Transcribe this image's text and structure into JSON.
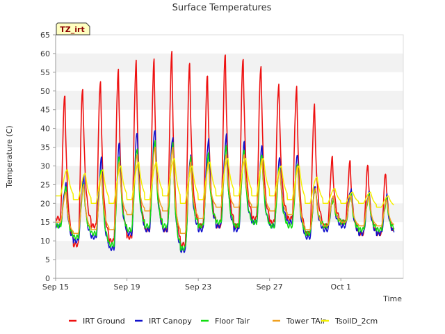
{
  "chart_data": {
    "type": "line",
    "title": "Surface Temperatures",
    "xlabel": "Time",
    "ylabel": "Temperature (C)",
    "badge": "TZ_irt",
    "ylim": [
      0,
      65
    ],
    "yticks": [
      0,
      5,
      10,
      15,
      20,
      25,
      30,
      35,
      40,
      45,
      50,
      55,
      60,
      65
    ],
    "xlim": [
      "2023-09-15",
      "2023-10-04T12:00"
    ],
    "xticks": [
      {
        "label": "Sep 15",
        "date": "2023-09-15"
      },
      {
        "label": "Sep 19",
        "date": "2023-09-19"
      },
      {
        "label": "Sep 23",
        "date": "2023-09-23"
      },
      {
        "label": "Sep 27",
        "date": "2023-09-27"
      },
      {
        "label": "Oct 1",
        "date": "2023-10-01"
      }
    ],
    "grid": "horizontal-bands",
    "legend_position": "bottom",
    "daily_dates": [
      "2023-09-15",
      "2023-09-16",
      "2023-09-17",
      "2023-09-18",
      "2023-09-19",
      "2023-09-20",
      "2023-09-21",
      "2023-09-22",
      "2023-09-23",
      "2023-09-24",
      "2023-09-25",
      "2023-09-26",
      "2023-09-27",
      "2023-09-28",
      "2023-09-29",
      "2023-09-30",
      "2023-10-01",
      "2023-10-02",
      "2023-10-03"
    ],
    "series": [
      {
        "name": "IRT Ground",
        "color": "#ee1111",
        "daily_max": [
          49,
          51,
          53,
          56,
          58,
          58,
          60,
          57,
          54,
          60,
          59,
          57,
          52,
          51,
          46,
          32,
          31,
          30,
          28
        ],
        "daily_min": [
          16,
          9,
          14,
          10,
          11,
          13,
          13,
          9,
          14,
          14,
          14,
          16,
          15,
          16,
          12,
          14,
          15,
          12,
          12
        ]
      },
      {
        "name": "IRT Canopy",
        "color": "#1111cc",
        "daily_max": [
          25,
          27,
          32,
          36,
          39,
          40,
          38,
          33,
          37,
          38,
          36,
          35,
          32,
          33,
          25,
          22,
          24,
          23,
          22
        ],
        "daily_min": [
          14,
          10,
          11,
          8,
          12,
          13,
          13,
          7.5,
          13,
          14,
          13,
          15,
          14,
          15,
          11,
          13,
          14,
          12,
          12
        ]
      },
      {
        "name": "Floor Tair",
        "color": "#11dd11",
        "daily_max": [
          24,
          25,
          29,
          33,
          35,
          37,
          36,
          32,
          33,
          35,
          34,
          33,
          30,
          31,
          24,
          21,
          22,
          22,
          21
        ],
        "daily_min": [
          14,
          11,
          12,
          9,
          13,
          14,
          14,
          8,
          14,
          15,
          14,
          15,
          14,
          14,
          12,
          14,
          15,
          13,
          13
        ]
      },
      {
        "name": "Tower TAir",
        "color": "#f0a020",
        "daily_max": [
          23,
          25,
          28,
          31,
          33,
          35,
          35,
          31,
          31,
          33,
          33,
          32,
          29,
          30,
          24,
          22,
          22,
          22,
          21
        ],
        "daily_min": [
          15,
          12,
          13,
          13,
          17,
          18,
          18,
          12,
          16,
          19,
          19,
          19,
          18,
          17,
          13,
          14,
          15,
          14,
          14
        ]
      },
      {
        "name": "TsoilD_2cm",
        "color": "#f4f000",
        "daily_max": [
          29,
          28,
          29,
          30,
          31,
          31,
          32,
          30,
          31,
          32,
          32,
          32,
          30,
          30,
          27,
          24,
          23,
          23,
          22
        ],
        "daily_min": [
          22,
          21,
          20,
          20,
          21,
          21,
          22,
          20,
          21,
          22,
          22,
          22,
          22,
          21,
          20,
          20,
          20,
          20,
          19
        ]
      }
    ]
  }
}
